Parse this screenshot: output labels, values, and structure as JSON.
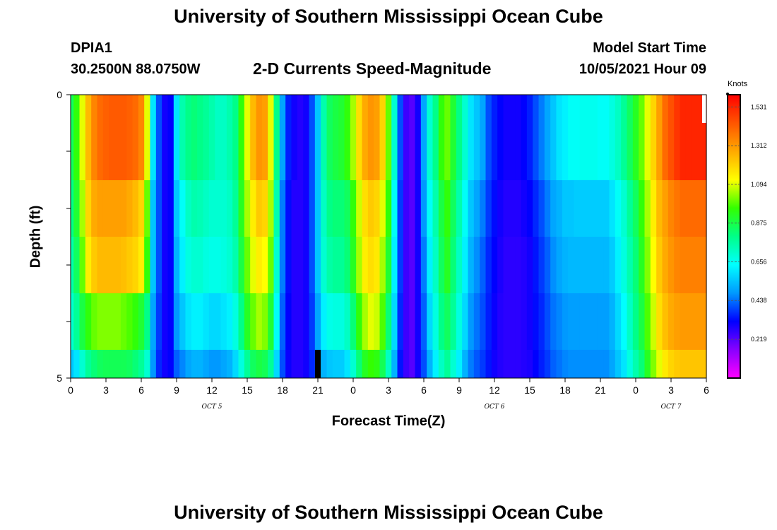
{
  "header": {
    "title": "University of Southern Mississippi Ocean Cube",
    "station": "DPIA1",
    "location": "30.2500N  88.0750W",
    "subtitle": "2-D Currents Speed-Magnitude",
    "model_start_label": "Model Start Time",
    "model_start_value": "10/05/2021 Hour 09"
  },
  "footer": {
    "title": "University of Southern Mississippi Ocean Cube"
  },
  "chart_data": {
    "type": "heatmap",
    "title": "2-D Currents Speed-Magnitude",
    "xlabel": "Forecast Time(Z)",
    "ylabel": "Depth (ft)",
    "ylim": [
      0,
      5
    ],
    "y_tick_labels": [
      "0",
      "5"
    ],
    "x_tick_labels": [
      "0",
      "3",
      "6",
      "9",
      "12",
      "15",
      "18",
      "21",
      "0",
      "3",
      "6",
      "9",
      "12",
      "15",
      "18",
      "21",
      "0",
      "3",
      "6"
    ],
    "day_labels": [
      {
        "label": "OCT 5",
        "hour": 12
      },
      {
        "label": "OCT 6",
        "hour": 36
      },
      {
        "label": "OCT 7",
        "hour": 51
      }
    ],
    "x_range_hours": [
      0,
      54
    ],
    "depth_layers": 5,
    "units": "Knots",
    "colorbar_ticks": [
      "1.531",
      "1.312",
      "1.094",
      "0.875",
      "0.656",
      "0.438",
      "0.219"
    ],
    "colorbar_range": [
      0,
      1.6
    ],
    "colorbar_colors": [
      "#ff00ff",
      "#8800ff",
      "#0000ff",
      "#0099ff",
      "#00ffff",
      "#00ff88",
      "#33ff00",
      "#ffff00",
      "#ffaa00",
      "#ff5500",
      "#ff0000"
    ],
    "time_hours": [
      0,
      0.5,
      1,
      1.5,
      2,
      2.5,
      3,
      3.5,
      4,
      4.5,
      5,
      5.5,
      6,
      6.5,
      7,
      7.5,
      8,
      8.5,
      9,
      9.5,
      10,
      10.5,
      11,
      11.5,
      12,
      12.5,
      13,
      13.5,
      14,
      14.5,
      15,
      15.5,
      16,
      16.5,
      17,
      17.5,
      18,
      18.5,
      19,
      19.5,
      20,
      20.5,
      21,
      21.5,
      22,
      22.5,
      23,
      23.5,
      24,
      24.5,
      25,
      25.5,
      26,
      26.5,
      27,
      27.5,
      28,
      28.5,
      29,
      29.5,
      30,
      30.5,
      31,
      31.5,
      32,
      32.5,
      33,
      33.5,
      34,
      34.5,
      35,
      35.5,
      36,
      36.5,
      37,
      37.5,
      38,
      38.5,
      39,
      39.5,
      40,
      40.5,
      41,
      41.5,
      42,
      42.5,
      43,
      43.5,
      44,
      44.5,
      45,
      45.5,
      46,
      46.5,
      47,
      47.5,
      48,
      48.5,
      49,
      49.5,
      50,
      50.5,
      51,
      51.5,
      52,
      52.5,
      53,
      53.5,
      54
    ],
    "speed_layers": [
      [
        0.85,
        0.95,
        1.1,
        1.25,
        1.35,
        1.4,
        1.42,
        1.43,
        1.43,
        1.43,
        1.42,
        1.4,
        1.35,
        1.1,
        0.6,
        0.4,
        0.3,
        0.32,
        0.6,
        0.75,
        0.8,
        0.82,
        0.8,
        0.78,
        0.75,
        0.72,
        0.72,
        0.75,
        0.8,
        0.95,
        1.1,
        1.25,
        1.32,
        1.3,
        1.1,
        0.8,
        0.5,
        0.35,
        0.3,
        0.28,
        0.3,
        0.4,
        0.55,
        0.75,
        0.85,
        0.88,
        0.9,
        0.95,
        1.05,
        1.18,
        1.28,
        1.32,
        1.3,
        1.2,
        1.0,
        0.7,
        0.4,
        0.25,
        0.22,
        0.3,
        0.5,
        0.7,
        0.8,
        0.95,
        1.0,
        0.9,
        0.8,
        0.7,
        0.6,
        0.55,
        0.5,
        0.4,
        0.35,
        0.32,
        0.3,
        0.3,
        0.3,
        0.32,
        0.35,
        0.4,
        0.45,
        0.5,
        0.55,
        0.6,
        0.62,
        0.65,
        0.65,
        0.66,
        0.66,
        0.66,
        0.65,
        0.65,
        0.68,
        0.72,
        0.78,
        0.85,
        0.92,
        1.0,
        1.1,
        1.2,
        1.3,
        1.4,
        1.45,
        1.5,
        1.53,
        1.53,
        1.53,
        1.53,
        1.53
      ],
      [
        0.8,
        0.9,
        1.05,
        1.2,
        1.28,
        1.3,
        1.3,
        1.3,
        1.3,
        1.3,
        1.28,
        1.25,
        1.2,
        1.0,
        0.55,
        0.4,
        0.3,
        0.32,
        0.55,
        0.65,
        0.72,
        0.75,
        0.74,
        0.72,
        0.7,
        0.7,
        0.7,
        0.72,
        0.78,
        0.92,
        1.05,
        1.15,
        1.22,
        1.2,
        1.05,
        0.75,
        0.45,
        0.33,
        0.28,
        0.28,
        0.3,
        0.4,
        0.55,
        0.72,
        0.8,
        0.82,
        0.82,
        0.85,
        0.95,
        1.08,
        1.18,
        1.22,
        1.2,
        1.1,
        0.95,
        0.65,
        0.38,
        0.25,
        0.22,
        0.3,
        0.48,
        0.65,
        0.75,
        0.88,
        0.95,
        0.85,
        0.75,
        0.65,
        0.55,
        0.5,
        0.45,
        0.38,
        0.33,
        0.3,
        0.28,
        0.28,
        0.28,
        0.3,
        0.32,
        0.36,
        0.4,
        0.45,
        0.5,
        0.52,
        0.55,
        0.55,
        0.56,
        0.56,
        0.56,
        0.56,
        0.56,
        0.56,
        0.6,
        0.65,
        0.7,
        0.78,
        0.85,
        0.95,
        1.05,
        1.15,
        1.25,
        1.3,
        1.35,
        1.38,
        1.4,
        1.4,
        1.4,
        1.4,
        1.4
      ],
      [
        0.75,
        0.85,
        1.0,
        1.15,
        1.22,
        1.25,
        1.25,
        1.25,
        1.25,
        1.24,
        1.22,
        1.2,
        1.15,
        0.95,
        0.55,
        0.4,
        0.3,
        0.32,
        0.52,
        0.62,
        0.68,
        0.7,
        0.7,
        0.68,
        0.67,
        0.67,
        0.68,
        0.7,
        0.75,
        0.88,
        1.0,
        1.1,
        1.15,
        1.12,
        1.0,
        0.7,
        0.45,
        0.33,
        0.28,
        0.28,
        0.3,
        0.4,
        0.55,
        0.7,
        0.76,
        0.78,
        0.78,
        0.82,
        0.92,
        1.05,
        1.15,
        1.18,
        1.16,
        1.05,
        0.9,
        0.62,
        0.38,
        0.25,
        0.22,
        0.3,
        0.45,
        0.62,
        0.72,
        0.85,
        0.92,
        0.82,
        0.72,
        0.62,
        0.52,
        0.47,
        0.42,
        0.36,
        0.32,
        0.29,
        0.27,
        0.27,
        0.27,
        0.28,
        0.3,
        0.34,
        0.38,
        0.42,
        0.47,
        0.5,
        0.52,
        0.53,
        0.53,
        0.53,
        0.53,
        0.53,
        0.53,
        0.53,
        0.56,
        0.62,
        0.68,
        0.75,
        0.82,
        0.92,
        1.02,
        1.12,
        1.22,
        1.28,
        1.32,
        1.35,
        1.36,
        1.36,
        1.36,
        1.36,
        1.36
      ],
      [
        0.7,
        0.78,
        0.88,
        0.95,
        1.0,
        1.02,
        1.02,
        1.02,
        1.02,
        1.0,
        0.98,
        0.95,
        0.9,
        0.8,
        0.5,
        0.38,
        0.3,
        0.32,
        0.48,
        0.55,
        0.6,
        0.62,
        0.62,
        0.6,
        0.58,
        0.58,
        0.6,
        0.62,
        0.68,
        0.8,
        0.92,
        1.0,
        1.05,
        1.02,
        0.9,
        0.65,
        0.42,
        0.32,
        0.28,
        0.28,
        0.3,
        0.38,
        0.5,
        0.62,
        0.67,
        0.68,
        0.68,
        0.72,
        0.82,
        0.95,
        1.05,
        1.1,
        1.08,
        0.98,
        0.82,
        0.58,
        0.36,
        0.25,
        0.22,
        0.3,
        0.42,
        0.58,
        0.68,
        0.8,
        0.85,
        0.78,
        0.68,
        0.58,
        0.48,
        0.44,
        0.4,
        0.35,
        0.31,
        0.28,
        0.27,
        0.27,
        0.27,
        0.28,
        0.3,
        0.33,
        0.36,
        0.4,
        0.44,
        0.46,
        0.48,
        0.49,
        0.49,
        0.49,
        0.49,
        0.49,
        0.49,
        0.49,
        0.52,
        0.58,
        0.64,
        0.72,
        0.8,
        0.88,
        0.98,
        1.08,
        1.18,
        1.24,
        1.28,
        1.3,
        1.31,
        1.31,
        1.31,
        1.31,
        1.31
      ],
      [
        0.55,
        0.6,
        0.7,
        0.78,
        0.82,
        0.85,
        0.86,
        0.86,
        0.86,
        0.86,
        0.85,
        0.82,
        0.78,
        0.7,
        0.48,
        0.36,
        0.3,
        0.32,
        0.42,
        0.46,
        0.5,
        0.52,
        0.52,
        0.5,
        0.48,
        0.48,
        0.5,
        0.52,
        0.58,
        0.68,
        0.78,
        0.85,
        0.88,
        0.86,
        0.78,
        0.58,
        0.4,
        0.31,
        0.28,
        0.28,
        0.3,
        0.36,
        0.44,
        0.52,
        0.55,
        0.56,
        0.56,
        0.6,
        0.7,
        0.82,
        0.92,
        0.96,
        0.94,
        0.86,
        0.72,
        0.52,
        0.34,
        0.25,
        0.22,
        0.3,
        0.4,
        0.52,
        0.62,
        0.72,
        0.78,
        0.7,
        0.62,
        0.52,
        0.45,
        0.41,
        0.38,
        0.34,
        0.3,
        0.28,
        0.27,
        0.27,
        0.27,
        0.28,
        0.29,
        0.32,
        0.35,
        0.38,
        0.42,
        0.44,
        0.46,
        0.47,
        0.47,
        0.47,
        0.47,
        0.47,
        0.47,
        0.47,
        0.5,
        0.55,
        0.6,
        0.68,
        0.75,
        0.82,
        0.92,
        1.02,
        1.1,
        1.16,
        1.2,
        1.22,
        1.23,
        1.23,
        1.23,
        1.23,
        1.23
      ]
    ]
  }
}
